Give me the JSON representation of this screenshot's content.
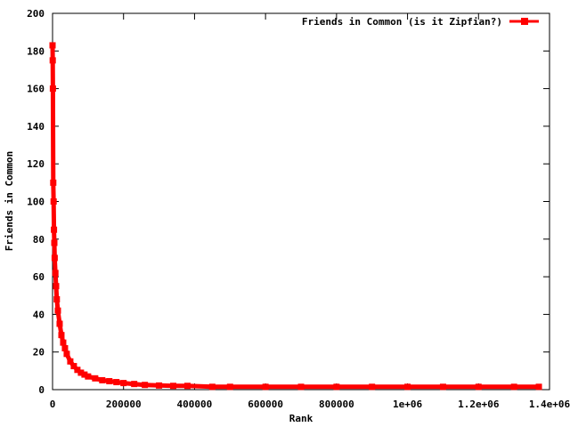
{
  "chart_data": {
    "type": "line",
    "title": "",
    "xlabel": "Rank",
    "ylabel": "Friends in Common",
    "xlim": [
      0,
      1400000
    ],
    "ylim": [
      0,
      200
    ],
    "x_ticks": [
      0,
      200000,
      400000,
      600000,
      800000,
      1000000,
      1200000,
      1400000
    ],
    "x_tick_labels": [
      "0",
      "200000",
      "400000",
      "600000",
      "800000",
      "1e+06",
      "1.2e+06",
      "1.4e+06"
    ],
    "y_ticks": [
      0,
      20,
      40,
      60,
      80,
      100,
      120,
      140,
      160,
      180,
      200
    ],
    "y_tick_labels": [
      "0",
      "20",
      "40",
      "60",
      "80",
      "100",
      "120",
      "140",
      "160",
      "180",
      "200"
    ],
    "grid": false,
    "legend_position": "top-right",
    "series": [
      {
        "name": "Friends in Common (is it Zipfian?)",
        "color": "#ff0000",
        "marker": "square",
        "x": [
          0,
          500,
          1000,
          2000,
          3000,
          4000,
          5000,
          6000,
          8000,
          10000,
          12000,
          15000,
          20000,
          25000,
          30000,
          35000,
          40000,
          50000,
          60000,
          70000,
          80000,
          90000,
          100000,
          120000,
          140000,
          160000,
          180000,
          200000,
          230000,
          260000,
          300000,
          340000,
          380000,
          450000,
          500000,
          600000,
          700000,
          800000,
          900000,
          1000000,
          1100000,
          1200000,
          1300000,
          1370000
        ],
        "y": [
          183,
          175,
          160,
          110,
          100,
          85,
          78,
          70,
          62,
          55,
          48,
          42,
          35,
          29,
          25,
          22,
          19,
          15,
          12.5,
          10.5,
          9,
          8,
          7,
          6,
          5,
          4.5,
          4,
          3.5,
          3,
          2.5,
          2.2,
          2,
          2,
          1.5,
          1.5,
          1.5,
          1.5,
          1.5,
          1.5,
          1.5,
          1.5,
          1.5,
          1.5,
          1.5
        ]
      }
    ]
  }
}
